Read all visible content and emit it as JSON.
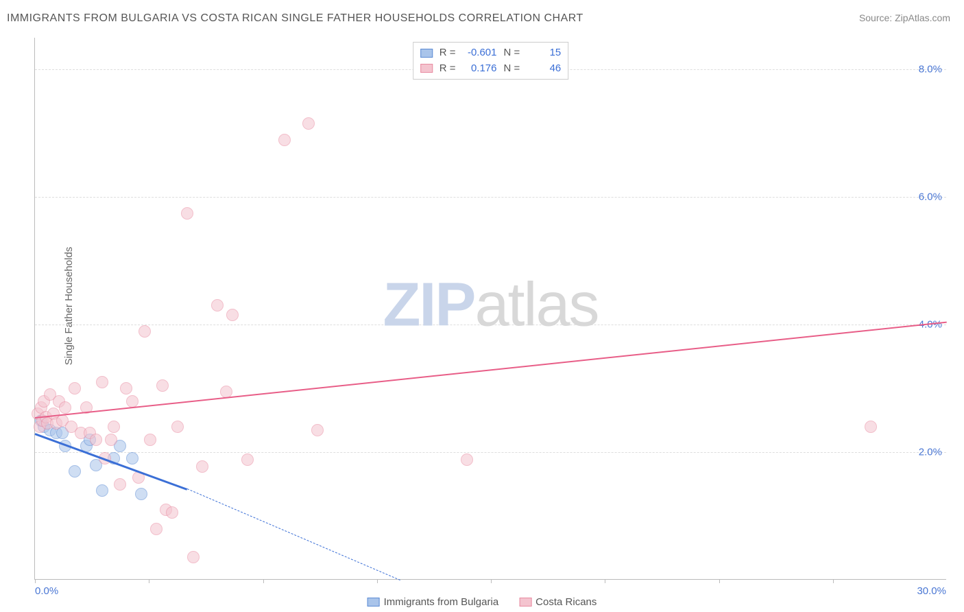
{
  "header": {
    "title": "IMMIGRANTS FROM BULGARIA VS COSTA RICAN SINGLE FATHER HOUSEHOLDS CORRELATION CHART",
    "source_label": "Source:",
    "source_value": "ZipAtlas.com"
  },
  "watermark": {
    "zip": "ZIP",
    "atlas": "atlas"
  },
  "chart": {
    "type": "scatter",
    "ylabel": "Single Father Households",
    "xlim": [
      0,
      30
    ],
    "ylim": [
      0,
      8.5
    ],
    "x_ticks_pct": [
      0,
      12.5,
      25,
      37.5,
      50,
      62.5,
      75,
      87.5
    ],
    "x_axis_labels": {
      "min": "0.0%",
      "max": "30.0%"
    },
    "y_gridlines": [
      {
        "v": 2.0,
        "label": "2.0%"
      },
      {
        "v": 4.0,
        "label": "4.0%"
      },
      {
        "v": 6.0,
        "label": "6.0%"
      },
      {
        "v": 8.0,
        "label": "8.0%"
      }
    ],
    "background_color": "#ffffff",
    "grid_color": "#dddddd",
    "axis_color": "#bbbbbb",
    "label_fontsize": 15,
    "tick_color": "#4a77d4",
    "marker_radius": 9,
    "marker_opacity": 0.55,
    "series": [
      {
        "name": "Immigrants from Bulgaria",
        "color_fill": "#a9c4ea",
        "color_stroke": "#5b8bd4",
        "r_label": "R =",
        "r_value": "-0.601",
        "n_label": "N =",
        "n_value": "15",
        "points": [
          [
            0.2,
            2.5
          ],
          [
            0.3,
            2.4
          ],
          [
            0.5,
            2.35
          ],
          [
            0.7,
            2.3
          ],
          [
            0.9,
            2.3
          ],
          [
            1.0,
            2.1
          ],
          [
            1.3,
            1.7
          ],
          [
            1.7,
            2.1
          ],
          [
            1.8,
            2.2
          ],
          [
            2.0,
            1.8
          ],
          [
            2.2,
            1.4
          ],
          [
            2.6,
            1.9
          ],
          [
            2.8,
            2.1
          ],
          [
            3.2,
            1.9
          ],
          [
            3.5,
            1.35
          ]
        ],
        "trend": {
          "x1": 0,
          "y1": 2.3,
          "x2": 5,
          "y2": 1.43,
          "dashed_after_x": 5,
          "x3": 12,
          "y3": 0,
          "width": 3,
          "color": "#3b6fd6"
        }
      },
      {
        "name": "Costa Ricans",
        "color_fill": "#f4c4cf",
        "color_stroke": "#e88aa0",
        "r_label": "R =",
        "r_value": "0.176",
        "n_label": "N =",
        "n_value": "46",
        "points": [
          [
            0.1,
            2.6
          ],
          [
            0.15,
            2.4
          ],
          [
            0.2,
            2.7
          ],
          [
            0.25,
            2.5
          ],
          [
            0.3,
            2.8
          ],
          [
            0.35,
            2.55
          ],
          [
            0.4,
            2.45
          ],
          [
            0.5,
            2.9
          ],
          [
            0.6,
            2.6
          ],
          [
            0.7,
            2.45
          ],
          [
            0.8,
            2.8
          ],
          [
            0.9,
            2.5
          ],
          [
            1.0,
            2.7
          ],
          [
            1.2,
            2.4
          ],
          [
            1.3,
            3.0
          ],
          [
            1.5,
            2.3
          ],
          [
            1.7,
            2.7
          ],
          [
            1.8,
            2.3
          ],
          [
            2.0,
            2.2
          ],
          [
            2.2,
            3.1
          ],
          [
            2.3,
            1.9
          ],
          [
            2.5,
            2.2
          ],
          [
            2.6,
            2.4
          ],
          [
            2.8,
            1.5
          ],
          [
            3.0,
            3.0
          ],
          [
            3.2,
            2.8
          ],
          [
            3.4,
            1.6
          ],
          [
            3.6,
            3.9
          ],
          [
            3.8,
            2.2
          ],
          [
            4.0,
            0.8
          ],
          [
            4.2,
            3.05
          ],
          [
            4.3,
            1.1
          ],
          [
            4.5,
            1.05
          ],
          [
            4.7,
            2.4
          ],
          [
            5.0,
            5.75
          ],
          [
            5.2,
            0.35
          ],
          [
            5.5,
            1.78
          ],
          [
            6.0,
            4.3
          ],
          [
            6.3,
            2.95
          ],
          [
            6.5,
            4.15
          ],
          [
            7.0,
            1.88
          ],
          [
            8.2,
            6.9
          ],
          [
            9.0,
            7.15
          ],
          [
            9.3,
            2.35
          ],
          [
            14.2,
            1.88
          ],
          [
            27.5,
            2.4
          ]
        ],
        "trend": {
          "x1": 0,
          "y1": 2.55,
          "x2": 30,
          "y2": 4.05,
          "width": 2,
          "color": "#e85d87"
        }
      }
    ]
  },
  "legend_bottom": [
    {
      "label": "Immigrants from Bulgaria",
      "fill": "#a9c4ea",
      "stroke": "#5b8bd4"
    },
    {
      "label": "Costa Ricans",
      "fill": "#f4c4cf",
      "stroke": "#e88aa0"
    }
  ]
}
